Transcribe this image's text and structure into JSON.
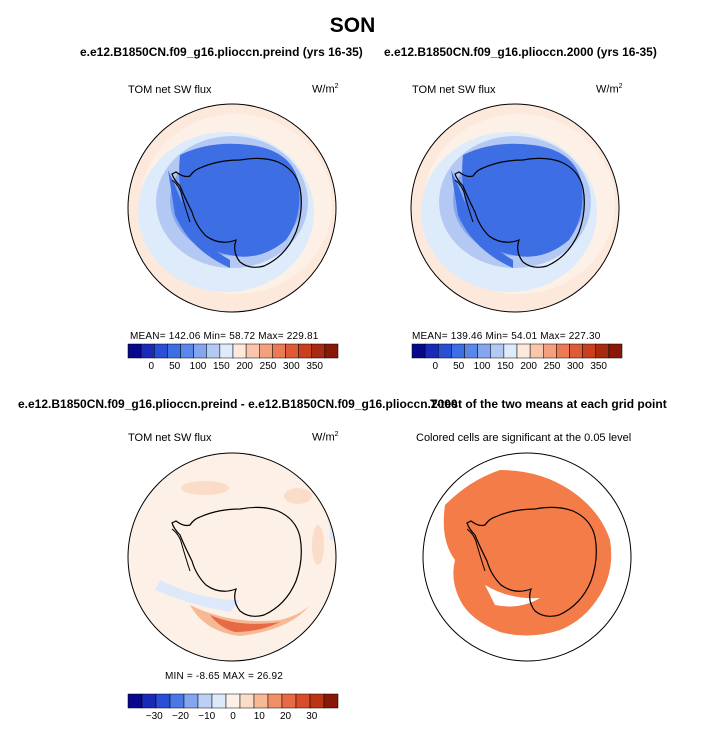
{
  "title": "SON",
  "panels": [
    {
      "header": "e.e12.B1850CN.f09_g16.plioccn.preind (yrs 16-35)",
      "variable": "TOM net SW flux",
      "units": "W/m",
      "units_sup": "2",
      "stats": "MEAN=  142.06   Min=   58.72   Max=  229.81",
      "colorbar": {
        "colors": [
          "#08088c",
          "#1a2ab8",
          "#2a4fd6",
          "#3e6ee4",
          "#5a88ea",
          "#84a6ef",
          "#b4c8f4",
          "#ddebfa",
          "#fde8dc",
          "#f9c6ac",
          "#f4a07e",
          "#ec7a56",
          "#e05a36",
          "#c8401c",
          "#a82a10",
          "#8a1808"
        ],
        "ticks": [
          "0",
          "50",
          "100",
          "150",
          "200",
          "250",
          "300",
          "350"
        ]
      }
    },
    {
      "header": "e.e12.B1850CN.f09_g16.plioccn.2000 (yrs 16-35)",
      "variable": "TOM net SW flux",
      "units": "W/m",
      "units_sup": "2",
      "stats": "MEAN=  139.46   Min=   54.01   Max=  227.30",
      "colorbar": {
        "colors": [
          "#08088c",
          "#1a2ab8",
          "#2a4fd6",
          "#3e6ee4",
          "#5a88ea",
          "#84a6ef",
          "#b4c8f4",
          "#ddebfa",
          "#fde8dc",
          "#f9c6ac",
          "#f4a07e",
          "#ec7a56",
          "#e05a36",
          "#c8401c",
          "#a82a10",
          "#8a1808"
        ],
        "ticks": [
          "0",
          "50",
          "100",
          "150",
          "200",
          "250",
          "300",
          "350"
        ]
      }
    },
    {
      "header": "e.e12.B1850CN.f09_g16.plioccn.preind - e.e12.B1850CN.f09_g16.plioccn.2000",
      "variable": "TOM net SW flux",
      "units": "W/m",
      "units_sup": "2",
      "stats": "MIN =   -8.65  MAX =   26.92",
      "colorbar": {
        "colors": [
          "#08088c",
          "#1a2ab8",
          "#2a4fd6",
          "#4a78e6",
          "#84a6ef",
          "#bcd0f5",
          "#dde9fa",
          "#fdf0e6",
          "#fbdcc8",
          "#f7b896",
          "#f19066",
          "#e86a44",
          "#d84c2a",
          "#bc3416",
          "#8a1808"
        ],
        "ticks": [
          "−30",
          "−20",
          "−10",
          "0",
          "10",
          "20",
          "30"
        ]
      }
    },
    {
      "header": "T-test of the two means at each grid point",
      "subtitle": "Colored cells are significant at the 0.05 level",
      "sig_color": "#f47c48"
    }
  ]
}
